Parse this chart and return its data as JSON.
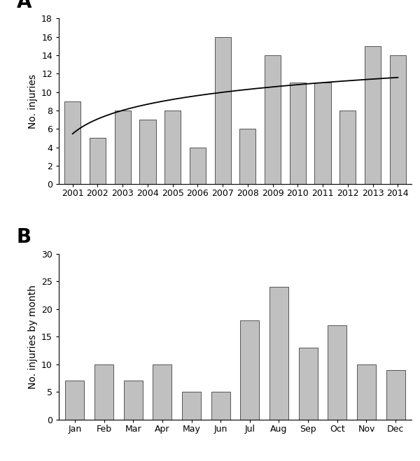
{
  "panel_A": {
    "years": [
      2001,
      2002,
      2003,
      2004,
      2005,
      2006,
      2007,
      2008,
      2009,
      2010,
      2011,
      2012,
      2013,
      2014
    ],
    "values": [
      9,
      5,
      8,
      7,
      8,
      4,
      16,
      6,
      14,
      11,
      11,
      8,
      15,
      14
    ],
    "ylabel": "No. injuries",
    "ylim": [
      0,
      18
    ],
    "yticks": [
      0,
      2,
      4,
      6,
      8,
      10,
      12,
      14,
      16,
      18
    ],
    "log_a": 2.3191,
    "log_b": 5.4699,
    "label": "A"
  },
  "panel_B": {
    "months": [
      "Jan",
      "Feb",
      "Mar",
      "Apr",
      "May",
      "Jun",
      "Jul",
      "Aug",
      "Sep",
      "Oct",
      "Nov",
      "Dec"
    ],
    "values": [
      7,
      10,
      7,
      10,
      5,
      5,
      18,
      24,
      13,
      17,
      10,
      9
    ],
    "ylabel": "No. injuries by month",
    "ylim": [
      0,
      30
    ],
    "yticks": [
      0,
      5,
      10,
      15,
      20,
      25,
      30
    ],
    "label": "B"
  },
  "bar_color": "#c0c0c0",
  "bar_edgecolor": "#555555",
  "line_color": "#000000",
  "background_color": "#ffffff",
  "label_fontsize": 20,
  "axis_fontsize": 10,
  "tick_fontsize": 9
}
